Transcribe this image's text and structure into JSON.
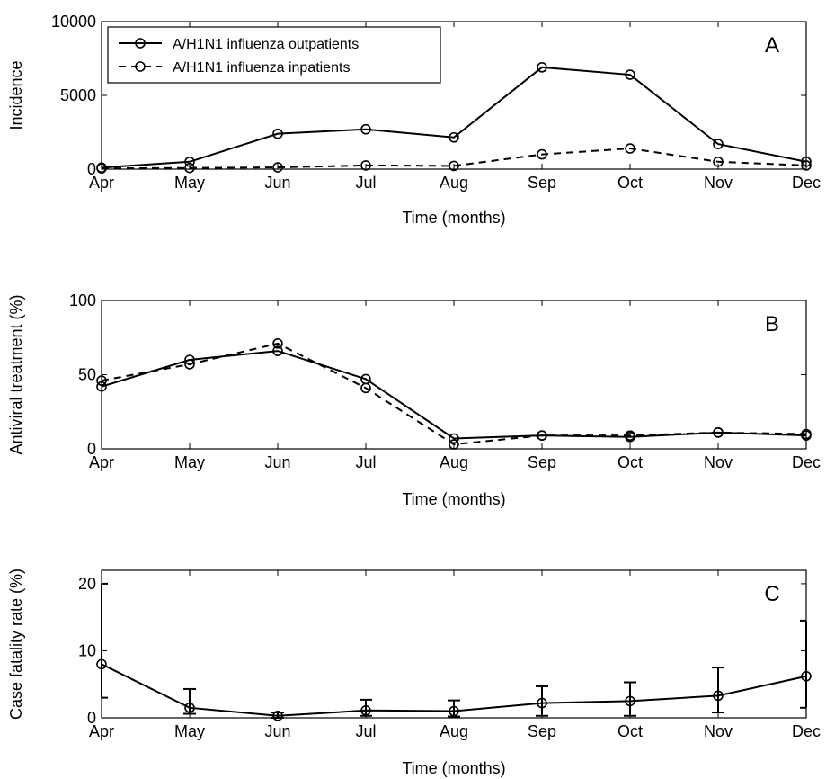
{
  "chart_data": [
    {
      "panel": "A",
      "type": "line",
      "categories": [
        "Apr",
        "May",
        "Jun",
        "Jul",
        "Aug",
        "Sep",
        "Oct",
        "Nov",
        "Dec"
      ],
      "xlabel": "Time (months)",
      "ylabel": "Incidence",
      "ylim": [
        0,
        10000
      ],
      "yticks": [
        0,
        5000,
        10000
      ],
      "ytick_labels": [
        "0",
        "5000",
        "10000"
      ],
      "legend_position": "top-left",
      "grid": false,
      "series": [
        {
          "name": "A/H1N1 influenza outpatients",
          "style": "solid",
          "marker": "circle",
          "values": [
            100,
            500,
            2400,
            2700,
            2150,
            6900,
            6400,
            1700,
            500
          ]
        },
        {
          "name": "A/H1N1 influenza inpatients",
          "style": "dashed",
          "marker": "circle",
          "values": [
            50,
            80,
            120,
            250,
            220,
            1000,
            1400,
            500,
            250
          ]
        }
      ]
    },
    {
      "panel": "B",
      "type": "line",
      "categories": [
        "Apr",
        "May",
        "Jun",
        "Jul",
        "Aug",
        "Sep",
        "Oct",
        "Nov",
        "Dec"
      ],
      "xlabel": "Time (months)",
      "ylabel": "Antiviral treatment  (%)",
      "ylim": [
        0,
        100
      ],
      "yticks": [
        0,
        50,
        100
      ],
      "ytick_labels": [
        "0",
        "50",
        "100"
      ],
      "grid": false,
      "series": [
        {
          "style": "solid",
          "marker": "circle",
          "values": [
            42,
            60,
            66,
            47,
            7,
            9,
            8,
            11,
            9
          ]
        },
        {
          "style": "dashed",
          "marker": "circle",
          "values": [
            46,
            57,
            71,
            41,
            3,
            9,
            9,
            11,
            10
          ]
        }
      ]
    },
    {
      "panel": "C",
      "type": "line",
      "categories": [
        "Apr",
        "May",
        "Jun",
        "Jul",
        "Aug",
        "Sep",
        "Oct",
        "Nov",
        "Dec"
      ],
      "xlabel": "Time (months)",
      "ylabel": "Case fatality rate (%)",
      "ylim": [
        0,
        22
      ],
      "yticks": [
        0,
        10,
        20
      ],
      "ytick_labels": [
        "0",
        "10",
        "20"
      ],
      "grid": false,
      "series": [
        {
          "style": "solid",
          "marker": "circle",
          "errorbars": true,
          "values": [
            8.0,
            1.5,
            0.3,
            1.1,
            1.0,
            2.2,
            2.5,
            3.3,
            6.2
          ],
          "lower": [
            3.0,
            0.6,
            0.0,
            0.3,
            0.2,
            0.3,
            0.3,
            0.8,
            1.5
          ],
          "upper": [
            20.0,
            4.3,
            0.8,
            2.7,
            2.6,
            4.7,
            5.3,
            7.5,
            14.5
          ]
        }
      ]
    }
  ]
}
